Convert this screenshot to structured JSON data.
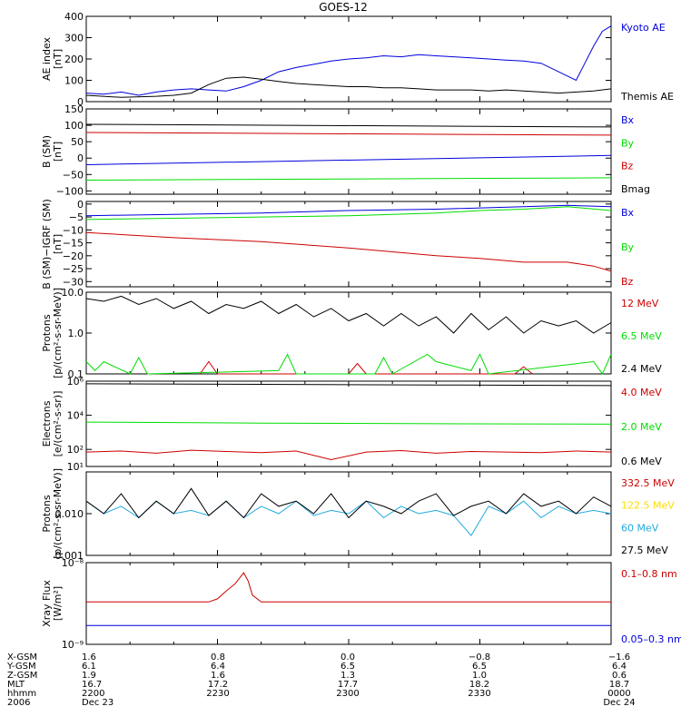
{
  "title": "GOES-12",
  "colors": {
    "black": "#000000",
    "red": "#cc0000",
    "green": "#00dd00",
    "blue": "#0000dd",
    "cyan": "#22aadd",
    "yellow": "#ffdd00"
  },
  "chart_data": [
    {
      "type": "line",
      "ylabel": "AE index",
      "yunit": "[nT]",
      "scale": "linear",
      "ylim": [
        0,
        400
      ],
      "ticks": [
        {
          "v": 0,
          "label": "0"
        },
        {
          "v": 100,
          "label": "100"
        },
        {
          "v": 200,
          "label": "200"
        },
        {
          "v": 300,
          "label": "300"
        },
        {
          "v": 400,
          "label": "400"
        }
      ],
      "series": [
        {
          "name": "Kyoto AE",
          "color": "blue",
          "x": [
            0,
            2,
            4,
            6,
            8,
            10,
            12,
            14,
            16,
            18,
            20,
            22,
            24,
            26,
            28,
            30,
            32,
            34,
            36,
            38,
            40,
            42,
            44,
            46,
            48,
            50,
            52,
            54,
            56,
            57,
            58,
            59,
            60
          ],
          "y": [
            40,
            35,
            45,
            30,
            45,
            55,
            60,
            55,
            50,
            70,
            100,
            140,
            160,
            175,
            190,
            200,
            205,
            215,
            210,
            220,
            215,
            210,
            205,
            200,
            195,
            190,
            180,
            140,
            100,
            180,
            260,
            330,
            355
          ]
        },
        {
          "name": "Themis AE",
          "color": "black",
          "x": [
            0,
            4,
            8,
            10,
            12,
            14,
            16,
            18,
            20,
            22,
            24,
            26,
            28,
            30,
            32,
            34,
            36,
            38,
            40,
            42,
            44,
            46,
            48,
            50,
            52,
            54,
            56,
            58,
            60
          ],
          "y": [
            30,
            20,
            25,
            30,
            40,
            80,
            110,
            115,
            105,
            95,
            85,
            80,
            75,
            70,
            70,
            65,
            65,
            60,
            55,
            55,
            55,
            50,
            55,
            50,
            45,
            40,
            45,
            50,
            60
          ]
        }
      ]
    },
    {
      "type": "line",
      "ylabel": "B (SM)",
      "yunit": "[nT]",
      "scale": "linear",
      "ylim": [
        -110,
        150
      ],
      "ticks": [
        {
          "v": -100,
          "label": "−100"
        },
        {
          "v": -50,
          "label": "−50"
        },
        {
          "v": 0,
          "label": "0"
        },
        {
          "v": 50,
          "label": "50"
        },
        {
          "v": 100,
          "label": "100"
        },
        {
          "v": 150,
          "label": "150"
        }
      ],
      "series": [
        {
          "name": "Bx",
          "color": "blue",
          "x": [
            0,
            60
          ],
          "y": [
            -20,
            8
          ]
        },
        {
          "name": "By",
          "color": "green",
          "x": [
            0,
            60
          ],
          "y": [
            -67,
            -60
          ]
        },
        {
          "name": "Bz",
          "color": "red",
          "x": [
            0,
            60
          ],
          "y": [
            78,
            70
          ]
        },
        {
          "name": "Bmag",
          "color": "black",
          "x": [
            0,
            60
          ],
          "y": [
            103,
            95
          ]
        }
      ]
    },
    {
      "type": "line",
      "ylabel": "B (SM)−IGRF (SM)",
      "yunit": "[nT]",
      "scale": "linear",
      "ylim": [
        -32,
        1
      ],
      "ticks": [
        {
          "v": -30,
          "label": "−30"
        },
        {
          "v": -25,
          "label": "−25"
        },
        {
          "v": -20,
          "label": "−20"
        },
        {
          "v": -15,
          "label": "−15"
        },
        {
          "v": -10,
          "label": "−10"
        },
        {
          "v": -5,
          "label": "−5"
        },
        {
          "v": 0,
          "label": "0"
        }
      ],
      "series": [
        {
          "name": "Bx",
          "color": "blue",
          "x": [
            0,
            10,
            20,
            30,
            40,
            50,
            55,
            60
          ],
          "y": [
            -4.5,
            -4,
            -3.5,
            -2.5,
            -2,
            -1,
            -0.5,
            -1
          ]
        },
        {
          "name": "By",
          "color": "green",
          "x": [
            0,
            10,
            20,
            30,
            40,
            45,
            50,
            55,
            60
          ],
          "y": [
            -6,
            -5.5,
            -5,
            -4.5,
            -3.5,
            -2.5,
            -2,
            -1,
            -2.5
          ]
        },
        {
          "name": "Bz",
          "color": "red",
          "x": [
            0,
            10,
            20,
            30,
            40,
            45,
            50,
            55,
            58,
            60
          ],
          "y": [
            -11,
            -13,
            -14.5,
            -17,
            -20,
            -21,
            -22.5,
            -22.5,
            -24,
            -26
          ]
        }
      ]
    },
    {
      "type": "line",
      "ylabel": "Protons",
      "yunit": "[p/(cm²-s-sr-MeV)]",
      "scale": "log",
      "ylim": [
        0.1,
        10
      ],
      "ticks": [
        {
          "v": 0.1,
          "label": "0.1"
        },
        {
          "v": 1,
          "label": "1.0"
        },
        {
          "v": 10,
          "label": "10.0"
        }
      ],
      "series": [
        {
          "name": "12 MeV",
          "color": "red",
          "x": [
            13,
            14,
            15,
            30,
            31,
            32,
            49,
            50,
            51
          ],
          "y": [
            0.1,
            0.2,
            0.1,
            0.1,
            0.18,
            0.1,
            0.1,
            0.15,
            0.1
          ]
        },
        {
          "name": "6.5 MeV",
          "color": "green",
          "x": [
            0,
            1,
            2,
            5,
            6,
            7,
            22,
            23,
            24,
            33,
            34,
            35,
            39,
            40,
            44,
            45,
            46,
            58,
            59,
            60
          ],
          "y": [
            0.2,
            0.12,
            0.2,
            0.1,
            0.25,
            0.1,
            0.12,
            0.3,
            0.1,
            0.1,
            0.25,
            0.1,
            0.3,
            0.2,
            0.12,
            0.3,
            0.1,
            0.2,
            0.1,
            0.3
          ]
        },
        {
          "name": "2.4 MeV",
          "color": "black",
          "x": [
            0,
            2,
            4,
            6,
            8,
            10,
            12,
            14,
            16,
            18,
            20,
            22,
            24,
            26,
            28,
            30,
            32,
            34,
            36,
            38,
            40,
            42,
            44,
            46,
            48,
            50,
            52,
            54,
            56,
            58,
            60
          ],
          "y": [
            7,
            6,
            8,
            5,
            7,
            4,
            6,
            3,
            5,
            4,
            6,
            3,
            5,
            2.5,
            4,
            2,
            3,
            1.5,
            3,
            1.5,
            2.5,
            1,
            3,
            1.2,
            2.5,
            1,
            2,
            1.5,
            2,
            1,
            1.8
          ]
        }
      ]
    },
    {
      "type": "line",
      "ylabel": "Electrons",
      "yunit": "[e/(cm²-s-sr)]",
      "scale": "log",
      "ylim": [
        10,
        1000000
      ],
      "ticks": [
        {
          "v": 10,
          "label": "10¹"
        },
        {
          "v": 100,
          "label": "10²"
        },
        {
          "v": 10000,
          "label": "10⁴"
        },
        {
          "v": 1000000,
          "label": "10⁶"
        }
      ],
      "series": [
        {
          "name": "4.0 MeV",
          "color": "red",
          "x": [
            0,
            4,
            8,
            12,
            16,
            20,
            24,
            28,
            32,
            36,
            40,
            44,
            48,
            52,
            56,
            60
          ],
          "y": [
            70,
            80,
            60,
            90,
            75,
            65,
            80,
            25,
            70,
            85,
            60,
            75,
            70,
            65,
            80,
            70
          ]
        },
        {
          "name": "2.0 MeV",
          "color": "green",
          "x": [
            0,
            20,
            40,
            60
          ],
          "y": [
            4000,
            3500,
            3200,
            3000
          ]
        },
        {
          "name": "0.6 MeV",
          "color": "black",
          "x": [
            0,
            20,
            40,
            60
          ],
          "y": [
            700000,
            650000,
            600000,
            550000
          ]
        }
      ]
    },
    {
      "type": "line",
      "ylabel": "Protons",
      "yunit": "[p/(cm²-s-sr-MeV)]",
      "scale": "log",
      "ylim": [
        0.001,
        0.1
      ],
      "ticks": [
        {
          "v": 0.001,
          "label": "0.001"
        },
        {
          "v": 0.01,
          "label": "0.010"
        }
      ],
      "series": [
        {
          "name": "332.5 MeV",
          "color": "red",
          "x": [],
          "y": []
        },
        {
          "name": "122.5 MeV",
          "color": "yellow",
          "x": [],
          "y": []
        },
        {
          "name": "60 MeV",
          "color": "cyan",
          "x": [
            0,
            2,
            4,
            6,
            8,
            10,
            12,
            14,
            16,
            18,
            20,
            22,
            24,
            26,
            28,
            30,
            32,
            34,
            36,
            38,
            40,
            42,
            44,
            46,
            48,
            50,
            52,
            54,
            56,
            58,
            60
          ],
          "y": [
            0.02,
            0.01,
            0.015,
            0.008,
            0.02,
            0.01,
            0.012,
            0.009,
            0.02,
            0.008,
            0.015,
            0.01,
            0.02,
            0.009,
            0.012,
            0.01,
            0.02,
            0.008,
            0.015,
            0.01,
            0.012,
            0.009,
            0.003,
            0.015,
            0.01,
            0.02,
            0.008,
            0.015,
            0.01,
            0.012,
            0.01
          ]
        },
        {
          "name": "27.5 MeV",
          "color": "black",
          "x": [
            0,
            2,
            4,
            6,
            8,
            10,
            12,
            14,
            16,
            18,
            20,
            22,
            24,
            26,
            28,
            30,
            32,
            34,
            36,
            38,
            40,
            42,
            44,
            46,
            48,
            50,
            52,
            54,
            56,
            58,
            60
          ],
          "y": [
            0.02,
            0.01,
            0.03,
            0.008,
            0.02,
            0.01,
            0.04,
            0.009,
            0.02,
            0.008,
            0.03,
            0.015,
            0.02,
            0.01,
            0.03,
            0.008,
            0.02,
            0.015,
            0.01,
            0.02,
            0.03,
            0.009,
            0.015,
            0.02,
            0.01,
            0.03,
            0.015,
            0.02,
            0.01,
            0.025,
            0.015
          ]
        }
      ]
    },
    {
      "type": "line",
      "ylabel": "Xray Flux",
      "yunit": "[W/m²]",
      "scale": "log",
      "ylim": [
        1e-09,
        1e-08
      ],
      "ticks": [
        {
          "v": 1e-09,
          "label": "10⁻⁹"
        },
        {
          "v": 1e-08,
          "label": "10⁻⁸"
        }
      ],
      "series": [
        {
          "name": "0.1–0.8 nm",
          "color": "red",
          "x": [
            0,
            14,
            15,
            16,
            17,
            18,
            18.5,
            19,
            20,
            21,
            60
          ],
          "y": [
            3.3e-09,
            3.3e-09,
            3.6e-09,
            4.5e-09,
            5.5e-09,
            7.5e-09,
            6e-09,
            4e-09,
            3.3e-09,
            3.3e-09,
            3.3e-09
          ]
        },
        {
          "name": "0.05–0.3 nm",
          "color": "blue",
          "x": [
            0,
            60
          ],
          "y": [
            1.7e-09,
            1.7e-09
          ]
        }
      ]
    }
  ],
  "orbit": {
    "row_labels": [
      "X-GSM",
      "Y-GSM",
      "Z-GSM",
      "MLT",
      "hhmm",
      "2006"
    ],
    "columns": [
      {
        "values": [
          "1.6",
          "6.1",
          "1.9",
          "16.7",
          "2200",
          "Dec 23"
        ]
      },
      {
        "values": [
          "0.8",
          "6.4",
          "1.6",
          "17.2",
          "2230",
          ""
        ]
      },
      {
        "values": [
          "0.0",
          "6.5",
          "1.3",
          "17.7",
          "2300",
          ""
        ]
      },
      {
        "values": [
          "−0.8",
          "6.5",
          "1.0",
          "18.2",
          "2330",
          ""
        ]
      },
      {
        "values": [
          "−1.6",
          "6.4",
          "0.6",
          "18.7",
          "0000",
          "Dec 24"
        ]
      }
    ]
  }
}
